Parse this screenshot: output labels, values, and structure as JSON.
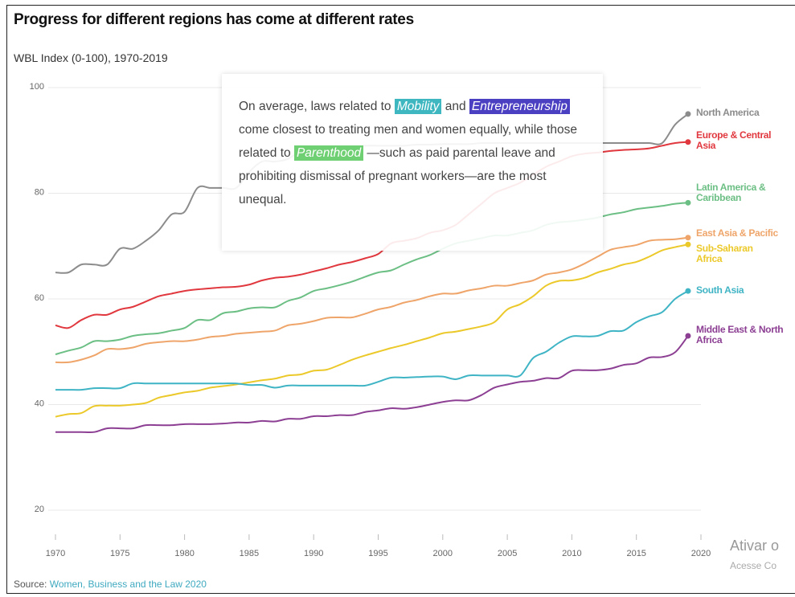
{
  "chart_data": {
    "type": "line",
    "title": "Progress for different regions has come at different rates",
    "subtitle": "WBL Index (0-100), 1970-2019",
    "source_prefix": "Source:",
    "source_link": "Women, Business and the Law 2020",
    "annotation": {
      "parts": [
        "On average, laws related to",
        "Mobility",
        "and",
        "Entrepreneurship",
        "come closest to treating men and women equally, while those related to",
        "Parenthood",
        "—such as paid parental leave and prohibiting dismissal of pregnant workers—are the most unequal."
      ],
      "highlight_colors": {
        "1": "#3fb7c0",
        "3": "#4b3fc2",
        "5": "#6fcf73"
      }
    },
    "watermark": [
      "Ativar o",
      "Acesse Co"
    ],
    "x": [
      1970,
      1971,
      1972,
      1973,
      1974,
      1975,
      1976,
      1977,
      1978,
      1979,
      1980,
      1981,
      1982,
      1983,
      1984,
      1985,
      1986,
      1987,
      1988,
      1989,
      1990,
      1991,
      1992,
      1993,
      1994,
      1995,
      1996,
      1997,
      1998,
      1999,
      2000,
      2001,
      2002,
      2003,
      2004,
      2005,
      2006,
      2007,
      2008,
      2009,
      2010,
      2011,
      2012,
      2013,
      2014,
      2015,
      2016,
      2017,
      2018,
      2019
    ],
    "xlim": [
      1970,
      2020
    ],
    "xticks": [
      1970,
      1975,
      1980,
      1985,
      1990,
      1995,
      2000,
      2005,
      2010,
      2015,
      2020
    ],
    "ylim": [
      20,
      100
    ],
    "yticks": [
      20,
      40,
      60,
      80,
      100
    ],
    "grid": true,
    "series": [
      {
        "name": "North America",
        "color": "#8c8c8c",
        "values": [
          65,
          65,
          66.5,
          66.5,
          66.5,
          69.5,
          69.5,
          71,
          73,
          76,
          76.5,
          81,
          81,
          81,
          81,
          84,
          86,
          86,
          86.5,
          88,
          88.5,
          88.5,
          88.5,
          88.8,
          89,
          89,
          89,
          89,
          89.2,
          89.2,
          89.3,
          89.3,
          89.3,
          89.5,
          89.5,
          89.5,
          89.5,
          89.5,
          89.5,
          89.5,
          89.5,
          89.5,
          89.5,
          89.5,
          89.5,
          89.5,
          89.5,
          89.5,
          93,
          95
        ]
      },
      {
        "name": "Europe & Central Asia",
        "color": "#e0383e",
        "values": [
          55,
          54.5,
          56,
          57,
          57,
          58,
          58.5,
          59.5,
          60.5,
          61,
          61.5,
          61.8,
          62,
          62.2,
          62.3,
          62.7,
          63.5,
          64,
          64.2,
          64.6,
          65.2,
          65.8,
          66.5,
          67,
          67.7,
          68.5,
          70.5,
          71,
          71.5,
          72.5,
          73,
          74,
          76,
          78,
          80,
          81,
          82,
          83.5,
          85,
          86,
          87,
          87.5,
          87.7,
          88,
          88.2,
          88.3,
          88.5,
          89,
          89.5,
          89.7
        ]
      },
      {
        "name": "Latin America & Caribbean",
        "color": "#6cbf84",
        "values": [
          49.5,
          50.2,
          50.8,
          52,
          52,
          52.3,
          53,
          53.3,
          53.5,
          54,
          54.5,
          56,
          56,
          57.3,
          57.6,
          58.2,
          58.4,
          58.4,
          59.6,
          60.3,
          61.5,
          62,
          62.6,
          63.3,
          64.2,
          65,
          65.4,
          66.5,
          67.5,
          68.3,
          69.5,
          70.5,
          71,
          71.5,
          72,
          72,
          72.5,
          73,
          74,
          74.5,
          74.7,
          75,
          75.4,
          76,
          76.4,
          77,
          77.3,
          77.6,
          78,
          78.2
        ]
      },
      {
        "name": "East Asia & Pacific",
        "color": "#efa56a",
        "values": [
          48,
          48,
          48.5,
          49.3,
          50.5,
          50.5,
          50.8,
          51.5,
          51.8,
          52,
          52,
          52.3,
          52.8,
          53,
          53.4,
          53.6,
          53.8,
          54,
          55,
          55.3,
          55.8,
          56.4,
          56.5,
          56.5,
          57.2,
          58,
          58.5,
          59.3,
          59.8,
          60.5,
          61,
          61,
          61.6,
          62,
          62.5,
          62.5,
          63,
          63.5,
          64.6,
          65,
          65.6,
          66.7,
          68,
          69.3,
          69.8,
          70.2,
          71,
          71.2,
          71.3,
          71.6
        ]
      },
      {
        "name": "Sub-Saharan Africa",
        "color": "#ecc92a",
        "values": [
          37.7,
          38.2,
          38.4,
          39.7,
          39.8,
          39.8,
          40,
          40.3,
          41.3,
          41.8,
          42.3,
          42.6,
          43.2,
          43.5,
          43.8,
          44.2,
          44.6,
          44.9,
          45.5,
          45.7,
          46.4,
          46.6,
          47.5,
          48.5,
          49.3,
          50,
          50.7,
          51.3,
          52,
          52.7,
          53.5,
          53.8,
          54.3,
          54.8,
          55.6,
          58,
          59,
          60.5,
          62.5,
          63.4,
          63.5,
          64,
          65,
          65.7,
          66.5,
          67,
          68,
          69.2,
          69.8,
          70.3
        ]
      },
      {
        "name": "South Asia",
        "color": "#3fb4c5",
        "values": [
          42.8,
          42.8,
          42.8,
          43.1,
          43.1,
          43.1,
          44,
          44,
          44,
          44,
          44,
          44,
          44,
          44,
          44,
          43.7,
          43.7,
          43.2,
          43.6,
          43.6,
          43.6,
          43.6,
          43.6,
          43.6,
          43.6,
          44.3,
          45.1,
          45.1,
          45.2,
          45.3,
          45.3,
          44.8,
          45.5,
          45.5,
          45.5,
          45.5,
          45.5,
          48.8,
          50,
          51.7,
          52.9,
          52.9,
          53,
          53.9,
          54,
          55.6,
          56.7,
          57.5,
          60,
          61.5
        ]
      },
      {
        "name": "Middle East & North Africa",
        "color": "#8c3f93",
        "values": [
          34.8,
          34.8,
          34.8,
          34.8,
          35.5,
          35.5,
          35.5,
          36.1,
          36.1,
          36.1,
          36.3,
          36.3,
          36.3,
          36.4,
          36.6,
          36.6,
          36.9,
          36.8,
          37.3,
          37.3,
          37.8,
          37.8,
          38,
          38,
          38.6,
          38.9,
          39.3,
          39.2,
          39.5,
          40,
          40.5,
          40.8,
          40.8,
          41.8,
          43.2,
          43.8,
          44.3,
          44.5,
          45,
          45,
          46.4,
          46.5,
          46.5,
          46.8,
          47.5,
          47.8,
          48.9,
          49,
          49.9,
          53
        ]
      }
    ]
  }
}
